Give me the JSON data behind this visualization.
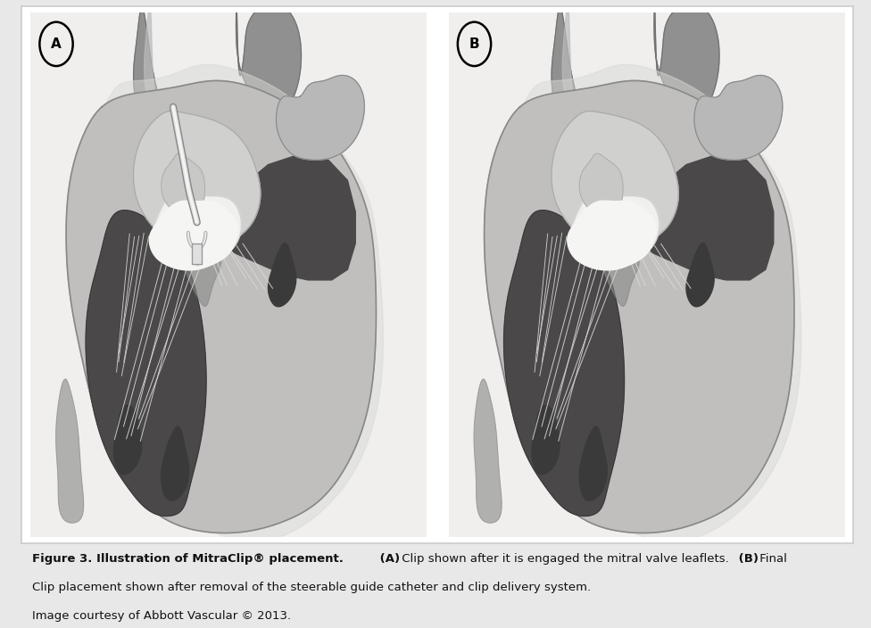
{
  "figure_width": 9.76,
  "figure_height": 7.04,
  "dpi": 100,
  "outer_bg": "#e8e8e8",
  "panel_bg": "#ffffff",
  "panel_inner_bg": "#f5f5f5",
  "caption_fontsize": 9.5,
  "caption_line1_bold": "Figure 3. Illustration of MitraClip® placement.",
  "caption_A_bold": "(A)",
  "caption_A_normal": " Clip shown after it is engaged the mitral valve leaflets.",
  "caption_B_bold": "(B)",
  "caption_B_normal": " Final",
  "caption_line2": "Clip placement shown after removal of the steerable guide catheter and clip delivery system.",
  "caption_line3": "Image courtesy of Abbott Vascular © 2013.",
  "colors": {
    "bg_light": "#f0efee",
    "heart_outer": "#aaaaaa",
    "heart_mid": "#888888",
    "heart_dark": "#555555",
    "ventricle_dark": "#3a3a3a",
    "ventricle_med": "#555555",
    "atrium_light": "#cccccc",
    "vessel_gray": "#909090",
    "white_bright": "#f8f8f8",
    "chordae": "#d0d0d0",
    "muscle_light": "#b8b8b8",
    "spine_gray": "#999999",
    "outline": "#666666"
  }
}
